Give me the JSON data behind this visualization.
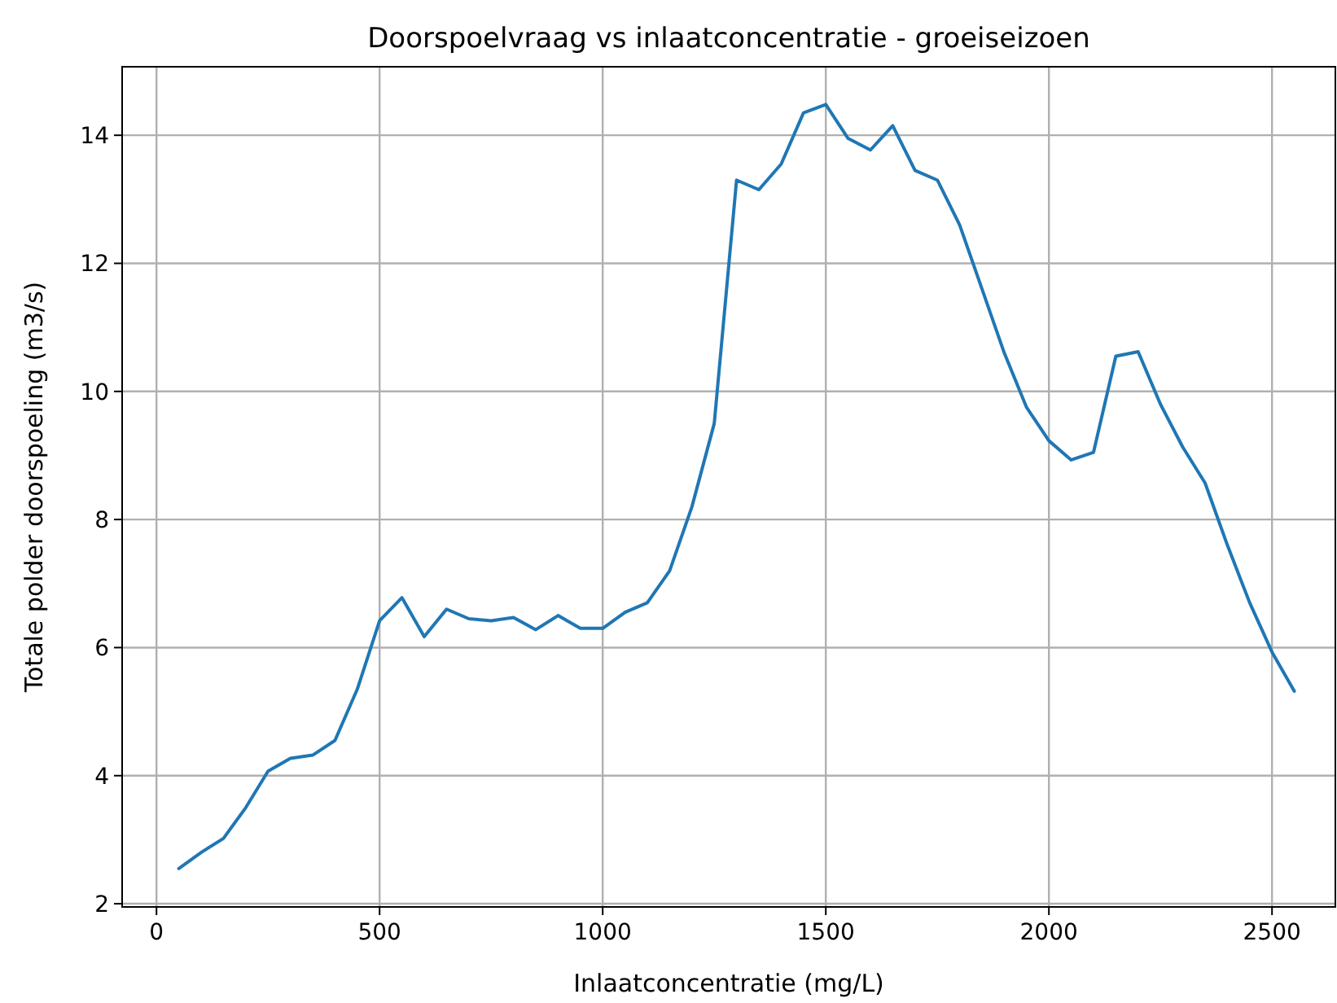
{
  "chart_data": {
    "type": "line",
    "title": "Doorspoelvraag vs inlaatconcentratie - groeiseizoen",
    "xlabel": "Inlaatconcentratie (mg/L)",
    "ylabel": "Totale polder doorspoeling (m3/s)",
    "x": [
      50,
      100,
      150,
      200,
      250,
      300,
      350,
      400,
      450,
      500,
      550,
      600,
      650,
      700,
      750,
      800,
      850,
      900,
      950,
      1000,
      1050,
      1100,
      1150,
      1200,
      1250,
      1300,
      1350,
      1400,
      1450,
      1500,
      1550,
      1600,
      1650,
      1700,
      1750,
      1800,
      1850,
      1900,
      1950,
      2000,
      2050,
      2100,
      2150,
      2200,
      2250,
      2300,
      2350,
      2400,
      2450,
      2500,
      2550
    ],
    "series": [
      {
        "color": "#1f77b4",
        "values": [
          2.55,
          2.8,
          3.02,
          3.5,
          4.07,
          4.27,
          4.32,
          4.55,
          5.35,
          6.42,
          6.78,
          6.17,
          6.6,
          6.45,
          6.42,
          6.47,
          6.28,
          6.5,
          6.3,
          6.3,
          6.55,
          6.7,
          7.2,
          8.2,
          9.5,
          13.3,
          13.15,
          13.55,
          14.35,
          14.48,
          13.95,
          13.77,
          14.15,
          13.45,
          13.3,
          12.6,
          11.6,
          10.6,
          9.75,
          9.23,
          8.93,
          9.05,
          10.55,
          10.62,
          9.8,
          9.13,
          8.57,
          7.6,
          6.7,
          5.93,
          5.32
        ]
      }
    ],
    "xlim": [
      -77,
      2642
    ],
    "ylim": [
      1.95,
      15.07
    ],
    "xticks": [
      0,
      500,
      1000,
      1500,
      2000,
      2500
    ],
    "yticks": [
      2,
      4,
      6,
      8,
      10,
      12,
      14
    ],
    "grid": true,
    "marker": "none",
    "line_style": "solid"
  }
}
